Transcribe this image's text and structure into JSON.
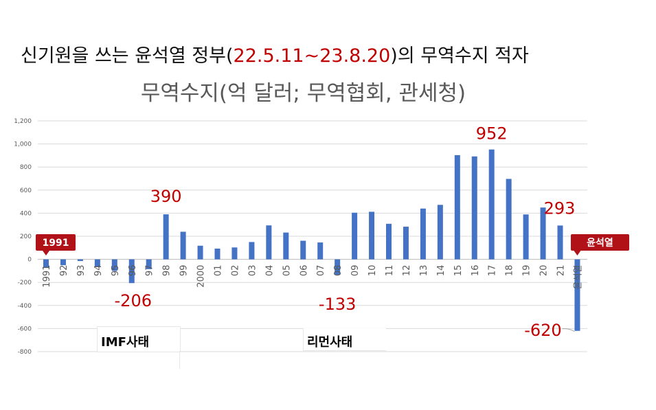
{
  "headline": {
    "prefix": "신기원을 쓰는 윤석열 정부(",
    "period": "22.5.11~23.8.20",
    "suffix": ")의 무역수지 적자"
  },
  "colors": {
    "bar": "#4472c4",
    "accent_red": "#c00000",
    "tag_bg": "#b01218"
  },
  "chart_data": {
    "type": "bar",
    "title": "무역수지(억 달러; 무역협회, 관세청)",
    "ylim": [
      -800,
      1200
    ],
    "yticks": [
      "1,200",
      "1,000",
      "800",
      "600",
      "400",
      "200",
      "0",
      "-200",
      "-400",
      "-600",
      "-800"
    ],
    "ytick_values": [
      1200,
      1000,
      800,
      600,
      400,
      200,
      0,
      -200,
      -400,
      -600,
      -800
    ],
    "grid": true,
    "categories": [
      "1991",
      "92",
      "93",
      "94",
      "95",
      "96",
      "97",
      "98",
      "99",
      "2000",
      "01",
      "02",
      "03",
      "04",
      "05",
      "06",
      "07",
      "08",
      "09",
      "10",
      "11",
      "12",
      "13",
      "14",
      "15",
      "16",
      "17",
      "18",
      "19",
      "20",
      "21",
      "윤석열"
    ],
    "values": [
      -70,
      -51,
      -15,
      -63,
      -100,
      -206,
      -85,
      390,
      239,
      118,
      93,
      103,
      150,
      294,
      232,
      161,
      146,
      -133,
      404,
      412,
      308,
      283,
      440,
      472,
      903,
      892,
      952,
      697,
      389,
      449,
      293,
      -620
    ],
    "annotations": [
      {
        "label": "390",
        "index": 7
      },
      {
        "label": "-206",
        "index": 5
      },
      {
        "label": "-133",
        "index": 17
      },
      {
        "label": "952",
        "index": 26
      },
      {
        "label": "293",
        "index": 30
      },
      {
        "label": "-620",
        "index": 31
      }
    ],
    "tags": [
      {
        "label": "1991",
        "index": 0
      },
      {
        "label": "윤석열",
        "index": 31
      }
    ]
  },
  "events": [
    {
      "label": "IMF사태"
    },
    {
      "label": "리먼사태"
    }
  ]
}
